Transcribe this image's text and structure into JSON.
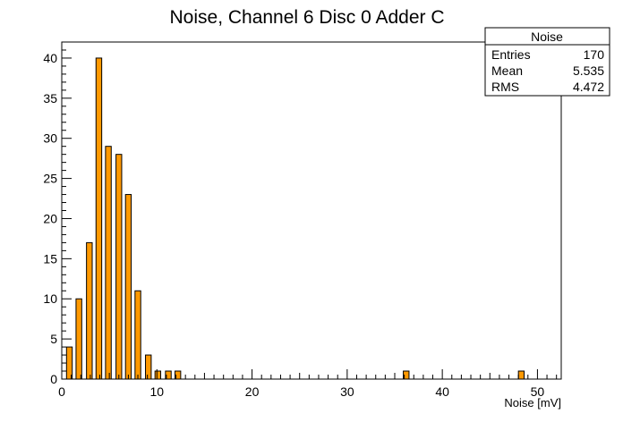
{
  "chart_data": {
    "type": "bar",
    "title": "Noise, Channel 6 Disc 0 Adder C",
    "xlabel": "Noise [mV]",
    "ylabel": "",
    "xlim": [
      0,
      52.5
    ],
    "ylim": [
      0,
      42
    ],
    "x_ticks": [
      0,
      10,
      20,
      30,
      40,
      50
    ],
    "y_ticks": [
      0,
      5,
      10,
      15,
      20,
      25,
      30,
      35,
      40
    ],
    "bar_width": 0.6,
    "bars": [
      {
        "x": 0.8,
        "value": 4
      },
      {
        "x": 1.8,
        "value": 10
      },
      {
        "x": 2.9,
        "value": 17
      },
      {
        "x": 3.9,
        "value": 40
      },
      {
        "x": 4.9,
        "value": 29
      },
      {
        "x": 6.0,
        "value": 28
      },
      {
        "x": 7.0,
        "value": 23
      },
      {
        "x": 8.0,
        "value": 11
      },
      {
        "x": 9.1,
        "value": 3
      },
      {
        "x": 10.1,
        "value": 1
      },
      {
        "x": 11.2,
        "value": 1
      },
      {
        "x": 12.2,
        "value": 1
      },
      {
        "x": 36.2,
        "value": 1
      },
      {
        "x": 48.3,
        "value": 1
      }
    ],
    "bar_color": "#ff9900",
    "grid": false
  },
  "stats_box": {
    "title": "Noise",
    "rows": [
      {
        "label": "Entries",
        "value": "170"
      },
      {
        "label": "Mean",
        "value": "5.535"
      },
      {
        "label": "RMS",
        "value": "4.472"
      }
    ]
  }
}
